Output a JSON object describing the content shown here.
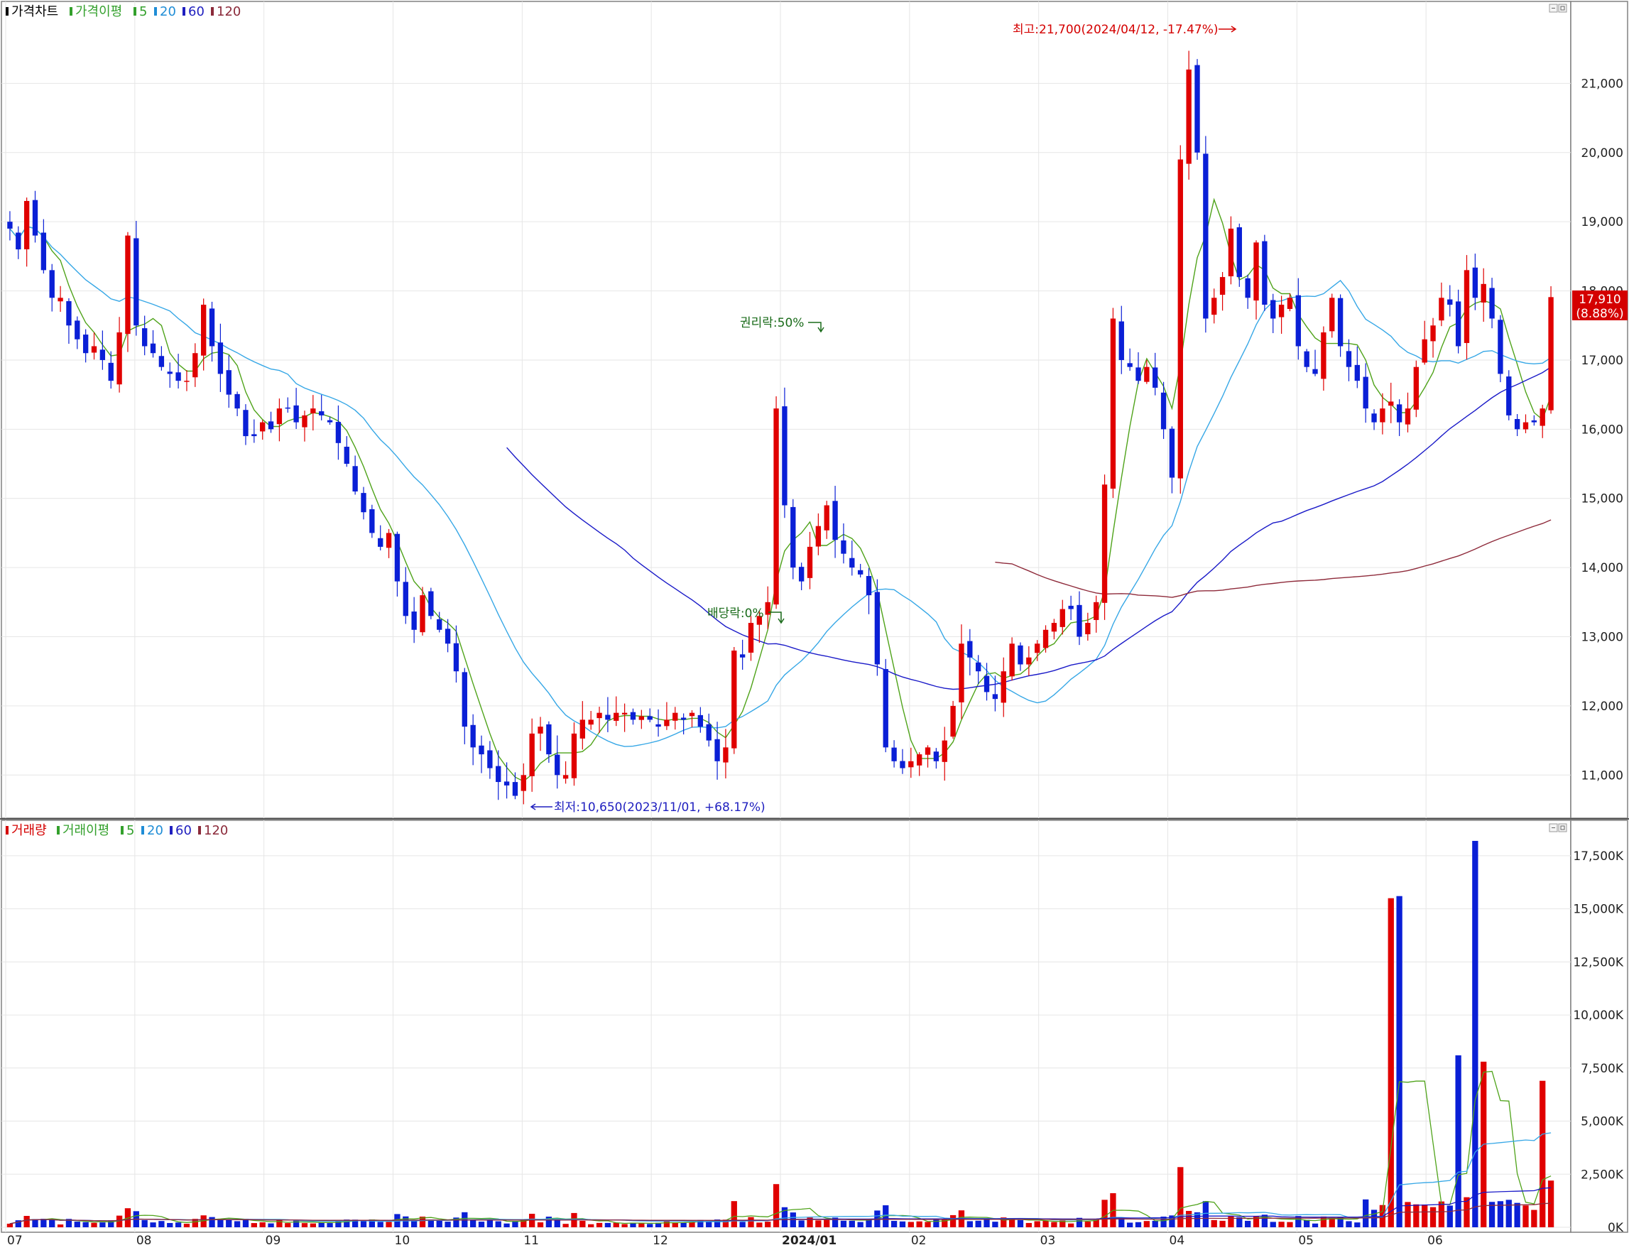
{
  "price_panel": {
    "legend": [
      {
        "label": "가격차트",
        "color": "#000000"
      },
      {
        "label": "가격이평",
        "color": "#33a02c"
      },
      {
        "label": "5",
        "color": "#33a02c"
      },
      {
        "label": "20",
        "color": "#1f8dd6"
      },
      {
        "label": "60",
        "color": "#1f1fbf"
      },
      {
        "label": "120",
        "color": "#8b2a3a"
      }
    ],
    "current_price": "17,910",
    "current_change": "(8.88%)",
    "annotations": {
      "high": "최고:21,700(2024/04/12, -17.47%)",
      "low": "최저:10,650(2023/11/01, +68.17%)",
      "rights": "권리락:50%",
      "dividend": "배당락:0%"
    }
  },
  "volume_panel": {
    "legend": [
      {
        "label": "거래량",
        "color": "#d40000"
      },
      {
        "label": "거래이평",
        "color": "#33a02c"
      },
      {
        "label": "5",
        "color": "#33a02c"
      },
      {
        "label": "20",
        "color": "#1f8dd6"
      },
      {
        "label": "60",
        "color": "#1f1fbf"
      },
      {
        "label": "120",
        "color": "#8b2a3a"
      }
    ]
  },
  "x_axis_labels": [
    "07",
    "08",
    "09",
    "10",
    "11",
    "12",
    "2024/01",
    "02",
    "03",
    "04",
    "05",
    "06"
  ],
  "chart_data": [
    {
      "type": "candlestick",
      "title": "가격차트",
      "y_ticks": [
        "11,000",
        "12,000",
        "13,000",
        "14,000",
        "15,000",
        "16,000",
        "17,000",
        "18,000",
        "19,000",
        "20,000",
        "21,000"
      ],
      "ylim": [
        10500,
        22000
      ],
      "months": [
        "07",
        "08",
        "09",
        "10",
        "11",
        "12",
        "2024/01",
        "02",
        "03",
        "04",
        "05",
        "06"
      ],
      "close_series": [
        18900,
        18600,
        19300,
        18800,
        18300,
        17900,
        17900,
        17500,
        17300,
        17100,
        17200,
        17000,
        16700,
        17400,
        18800,
        17500,
        17200,
        17100,
        16900,
        16800,
        16700,
        16700,
        17100,
        17800,
        17200,
        16800,
        16500,
        16300,
        15900,
        15900,
        16100,
        16000,
        16300,
        16300,
        16100,
        16200,
        16300,
        16200,
        16100,
        15800,
        15500,
        15100,
        14800,
        14500,
        14300,
        14500,
        13800,
        13300,
        13100,
        13600,
        13300,
        13100,
        12900,
        12500,
        11700,
        11400,
        11300,
        11100,
        10900,
        10850,
        10700,
        11000,
        11600,
        11700,
        11300,
        11000,
        11000,
        11600,
        11800,
        11800,
        11900,
        11800,
        11900,
        11900,
        11800,
        11850,
        11800,
        11700,
        11800,
        11900,
        11800,
        11900,
        11700,
        11500,
        11200,
        11400,
        12800,
        12700,
        13200,
        13300,
        13500,
        16300,
        14900,
        14000,
        13800,
        14300,
        14600,
        14900,
        14400,
        14200,
        14000,
        13900,
        13600,
        12600,
        11400,
        11200,
        11100,
        11200,
        11300,
        11400,
        11200,
        11500,
        12000,
        12900,
        12700,
        12500,
        12200,
        12100,
        12500,
        12900,
        12600,
        12700,
        12900,
        13100,
        13200,
        13400,
        13400,
        13000,
        13200,
        13500,
        15200,
        17600,
        17000,
        16900,
        16700,
        16900,
        16600,
        16000,
        15300,
        19900,
        21200,
        20000,
        17600,
        17900,
        18200,
        18900,
        18200,
        17900,
        18700,
        17800,
        17600,
        17800,
        17900,
        17200,
        16900,
        16800,
        17400,
        17900,
        17200,
        16900,
        16700,
        16300,
        16100,
        16300,
        16400,
        16100,
        16300,
        16900,
        17300,
        17500,
        17900,
        17800,
        17200,
        18300,
        17900,
        18100,
        17600,
        16800,
        16200,
        16000,
        16100,
        16100,
        16300,
        17910
      ],
      "ma_periods": [
        5,
        20,
        60,
        120
      ],
      "current_price": 17910,
      "current_change_pct": 8.88,
      "high": {
        "value": 21700,
        "date": "2024/04/12"
      },
      "low": {
        "value": 10650,
        "date": "2023/11/01"
      }
    },
    {
      "type": "bar",
      "title": "거래량",
      "y_ticks": [
        "0K",
        "2,500K",
        "5,000K",
        "7,500K",
        "10,000K",
        "12,500K",
        "15,000K",
        "17,500K"
      ],
      "ylim": [
        0,
        18500
      ],
      "units": "K",
      "ma_periods": [
        5,
        20,
        60,
        120
      ],
      "notable_spikes_k": [
        15500,
        15600,
        8100,
        18200,
        7800,
        6900,
        2300,
        2200
      ],
      "last_value_k": 2300
    }
  ]
}
